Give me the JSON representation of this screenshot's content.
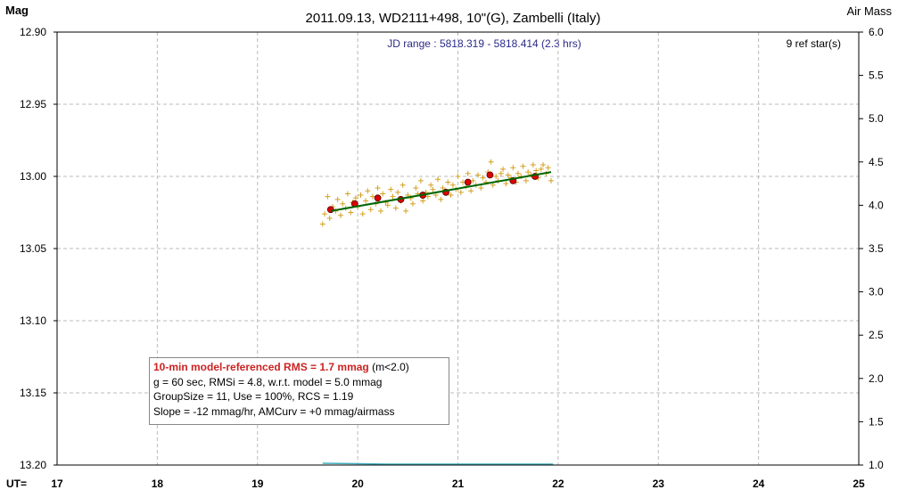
{
  "chart_data": {
    "type": "scatter",
    "title": "2011.09.13, WD2111+498, 10\"(G), Zambelli (Italy)",
    "subtitle": "JD range : 5818.319 - 5818.414 (2.3 hrs)",
    "ref_stars": "9 ref star(s)",
    "ylabel": "Mag",
    "y2label": "Air Mass",
    "xlabel": "UT=",
    "xlim": [
      17,
      25
    ],
    "ylim": [
      12.9,
      13.2
    ],
    "y_inverted": true,
    "y2lim": [
      1.0,
      6.0
    ],
    "x_ticks": [
      "17",
      "18",
      "19",
      "20",
      "21",
      "22",
      "23",
      "24",
      "25"
    ],
    "y_ticks": [
      "12.90",
      "12.95",
      "13.00",
      "13.05",
      "13.10",
      "13.15",
      "13.20"
    ],
    "y2_ticks": [
      "6.0",
      "5.5",
      "5.0",
      "4.5",
      "4.0",
      "3.5",
      "3.0",
      "2.5",
      "2.0",
      "1.5",
      "1.0"
    ],
    "grid": true,
    "series": [
      {
        "kind": "raw",
        "color": "#d4a020",
        "x": [
          19.65,
          19.67,
          19.7,
          19.72,
          19.75,
          19.78,
          19.8,
          19.83,
          19.85,
          19.88,
          19.9,
          19.93,
          19.95,
          19.98,
          20.0,
          20.03,
          20.05,
          20.08,
          20.1,
          20.13,
          20.15,
          20.18,
          20.2,
          20.23,
          20.25,
          20.28,
          20.3,
          20.33,
          20.35,
          20.38,
          20.4,
          20.43,
          20.45,
          20.48,
          20.5,
          20.53,
          20.55,
          20.58,
          20.6,
          20.63,
          20.65,
          20.68,
          20.7,
          20.73,
          20.75,
          20.78,
          20.8,
          20.83,
          20.85,
          20.88,
          20.9,
          20.93,
          20.95,
          20.98,
          21.0,
          21.03,
          21.05,
          21.08,
          21.1,
          21.13,
          21.15,
          21.18,
          21.2,
          21.23,
          21.25,
          21.28,
          21.3,
          21.33,
          21.35,
          21.38,
          21.4,
          21.43,
          21.45,
          21.48,
          21.5,
          21.53,
          21.55,
          21.58,
          21.6,
          21.63,
          21.65,
          21.68,
          21.7,
          21.73,
          21.75,
          21.78,
          21.8,
          21.83,
          21.85,
          21.88,
          21.9,
          21.93
        ],
        "y": [
          13.033,
          13.026,
          13.014,
          13.029,
          13.021,
          13.024,
          13.016,
          13.027,
          13.019,
          13.022,
          13.012,
          13.025,
          13.018,
          13.015,
          13.021,
          13.013,
          13.026,
          13.017,
          13.01,
          13.023,
          13.014,
          13.019,
          13.008,
          13.024,
          13.012,
          13.018,
          13.02,
          13.009,
          13.014,
          13.022,
          13.011,
          13.017,
          13.006,
          13.024,
          13.013,
          13.015,
          13.019,
          13.008,
          13.012,
          13.003,
          13.017,
          13.011,
          13.014,
          13.006,
          13.009,
          13.013,
          13.002,
          13.016,
          13.008,
          13.011,
          13.004,
          13.013,
          13.006,
          13.009,
          13.0,
          13.011,
          13.004,
          13.007,
          12.998,
          13.01,
          13.003,
          13.006,
          12.999,
          13.008,
          13.001,
          13.004,
          12.997,
          12.99,
          13.006,
          13.0,
          13.003,
          12.998,
          12.995,
          13.005,
          12.999,
          13.001,
          12.994,
          13.004,
          12.998,
          13.0,
          12.993,
          13.003,
          12.997,
          12.999,
          12.992,
          12.996,
          13.001,
          12.995,
          12.992,
          12.998,
          12.994,
          13.003
        ]
      },
      {
        "kind": "group-mean",
        "color": "#dd0000",
        "x": [
          19.73,
          19.97,
          20.2,
          20.43,
          20.65,
          20.88,
          21.1,
          21.32,
          21.55,
          21.77
        ],
        "y": [
          13.023,
          13.019,
          13.015,
          13.016,
          13.013,
          13.011,
          13.004,
          12.999,
          13.003,
          13.0
        ]
      },
      {
        "kind": "model-fit",
        "color": "#006600",
        "x": [
          19.73,
          21.93
        ],
        "y": [
          13.024,
          12.997
        ]
      },
      {
        "kind": "airmass",
        "axis": "y2",
        "color": "#40b0c0",
        "x": [
          19.65,
          20.0,
          20.3,
          20.6,
          20.9,
          21.2,
          21.5,
          21.8,
          21.95
        ],
        "y": [
          1.02,
          1.015,
          1.01,
          1.01,
          1.01,
          1.01,
          1.01,
          1.01,
          1.01
        ]
      }
    ]
  },
  "legend_box": {
    "line1_highlight": "10-min model-referenced RMS = 1.7 mmag",
    "line1_rest": " (m<2.0)",
    "line2": "g = 60 sec, RMSi = 4.8, w.r.t. model = 5.0 mmag",
    "line3": "GroupSize = 11, Use = 100%, RCS = 1.19",
    "line4": "Slope = -12 mmag/hr, AMCurv = +0 mmag/airmass"
  }
}
